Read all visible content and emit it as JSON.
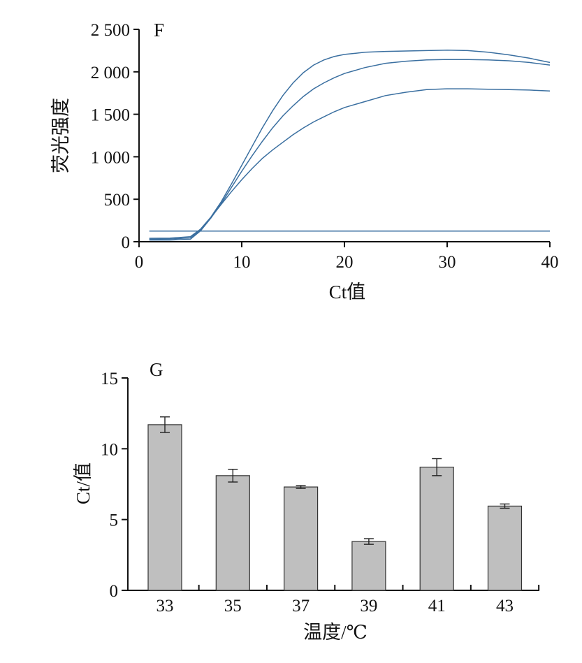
{
  "chart_data": [
    {
      "panel_label": "F",
      "type": "line",
      "xlabel": "Ct值",
      "ylabel": "荧光强度",
      "xlim": [
        0,
        40
      ],
      "ylim": [
        0,
        2500
      ],
      "x_ticks": [
        0,
        10,
        20,
        30,
        40
      ],
      "y_ticks": [
        0,
        500,
        1000,
        1500,
        2000,
        2500
      ],
      "y_tick_labels": [
        "0",
        "500",
        "1 000",
        "1 500",
        "2 000",
        "2 500"
      ],
      "grid": false,
      "color": "#3a6fa0",
      "series": [
        {
          "x": [
            1,
            3,
            5,
            6,
            7,
            8,
            9,
            10,
            11,
            12,
            13,
            14,
            15,
            16,
            17,
            18,
            19,
            20,
            22,
            24,
            26,
            28,
            30,
            32,
            34,
            36,
            38,
            40
          ],
          "y": [
            40,
            42,
            60,
            150,
            290,
            470,
            680,
            900,
            1120,
            1340,
            1540,
            1720,
            1870,
            1990,
            2080,
            2140,
            2180,
            2205,
            2230,
            2240,
            2245,
            2250,
            2255,
            2250,
            2230,
            2200,
            2160,
            2110
          ]
        },
        {
          "x": [
            1,
            3,
            5,
            6,
            7,
            8,
            9,
            10,
            11,
            12,
            13,
            14,
            15,
            16,
            17,
            18,
            19,
            20,
            22,
            24,
            26,
            28,
            30,
            32,
            34,
            36,
            38,
            40
          ],
          "y": [
            20,
            20,
            30,
            130,
            280,
            450,
            640,
            830,
            1010,
            1180,
            1340,
            1480,
            1600,
            1710,
            1800,
            1870,
            1930,
            1980,
            2050,
            2100,
            2125,
            2140,
            2145,
            2145,
            2140,
            2130,
            2110,
            2080
          ]
        },
        {
          "x": [
            1,
            3,
            5,
            6,
            7,
            8,
            9,
            10,
            11,
            12,
            13,
            14,
            15,
            16,
            17,
            18,
            19,
            20,
            22,
            24,
            26,
            28,
            30,
            32,
            34,
            36,
            38,
            40
          ],
          "y": [
            30,
            32,
            45,
            140,
            285,
            440,
            590,
            730,
            860,
            980,
            1080,
            1170,
            1260,
            1340,
            1410,
            1470,
            1530,
            1580,
            1650,
            1720,
            1760,
            1790,
            1800,
            1800,
            1795,
            1790,
            1785,
            1775
          ]
        },
        {
          "x": [
            1,
            40
          ],
          "y": [
            125,
            125
          ]
        }
      ]
    },
    {
      "panel_label": "G",
      "type": "bar",
      "xlabel": "温度/℃",
      "ylabel": "Ct/值",
      "categories": [
        "33",
        "35",
        "37",
        "39",
        "41",
        "43"
      ],
      "values": [
        11.7,
        8.1,
        7.3,
        3.45,
        8.7,
        5.95
      ],
      "errors": [
        0.55,
        0.45,
        0.1,
        0.2,
        0.6,
        0.15
      ],
      "ylim": [
        0,
        15
      ],
      "y_ticks": [
        0,
        5,
        10,
        15
      ],
      "grid": false,
      "bar_color": "#bfbfbf"
    }
  ]
}
